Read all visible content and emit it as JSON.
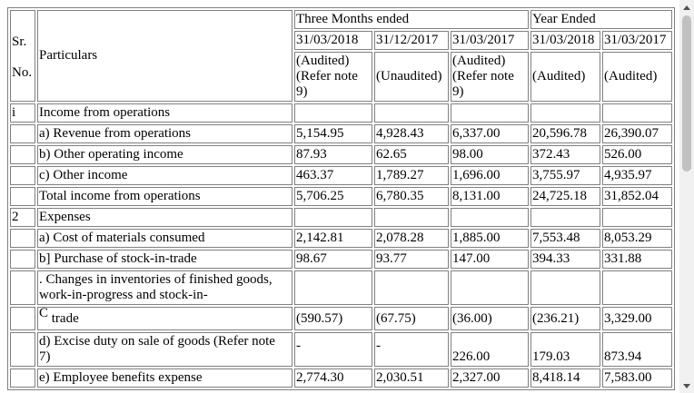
{
  "header": {
    "sr_no": "Sr.",
    "sr_no2": "No.",
    "particulars": "Particulars",
    "three_months": "Three Months ended",
    "year_ended": "Year Ended",
    "dates": [
      "31/03/2018",
      "31/12/2017",
      "31/03/2017",
      "31/03/2018",
      "31/03/2017"
    ],
    "status_a_l1": "(Audited)",
    "status_a_l2": "(Refer note",
    "status_a_l3": "9)",
    "status_b": "(Unaudited)",
    "status_c_l1": "(Audited)",
    "status_c_l2": "(Refer note",
    "status_c_l3": "9)",
    "status_d": "(Audited)",
    "status_e": "(Audited)"
  },
  "rows": [
    {
      "sr": "i",
      "label": "Income from operations",
      "values": [
        "",
        "",
        "",
        "",
        ""
      ]
    },
    {
      "sr": "",
      "label": "a) Revenue from operations",
      "values": [
        "5,154.95",
        "4,928.43",
        "6,337.00",
        "20,596.78",
        "26,390.07"
      ]
    },
    {
      "sr": "",
      "label": "b) Other operating income",
      "values": [
        "87.93",
        "62.65",
        "98.00",
        "372.43",
        "526.00"
      ]
    },
    {
      "sr": "",
      "label": "c) Other income",
      "values": [
        "463.37",
        "1,789.27",
        "1,696.00",
        "3,755.97",
        "4,935.97"
      ]
    },
    {
      "sr": "",
      "label": "Total income from operations",
      "values": [
        "5,706.25",
        "6,780.35",
        "8,131.00",
        "24,725.18",
        "31,852.04"
      ]
    },
    {
      "sr": "2",
      "label": "Expenses",
      "values": [
        "",
        "",
        "",
        "",
        ""
      ]
    },
    {
      "sr": "",
      "label": "a) Cost of materials consumed",
      "values": [
        "2,142.81",
        "2,078.28",
        "1,885.00",
        "7,553.48",
        "8,053.29"
      ]
    },
    {
      "sr": "",
      "label": "b] Purchase of stock-in-trade",
      "values": [
        "98.67",
        "93.77",
        "147.00",
        "394.33",
        "331.88"
      ]
    }
  ],
  "changes_row": {
    "label_l1": ". Changes in inventories of finished goods,",
    "label_l2": "work-in-progress and stock-in-",
    "sub_prefix": "C",
    "sub_label": " trade",
    "values": [
      "(590.57)",
      "(67.75)",
      "(36.00)",
      "(236.21)",
      "3,329.00"
    ]
  },
  "excise_row": {
    "label_l1": "d) Excise duty on sale of goods (Refer note",
    "label_l2": "7)",
    "values": [
      "-",
      "-",
      "226.00",
      "179.03",
      "873.94"
    ]
  },
  "partial_row": {
    "label": "e) Employee benefits expense",
    "values": [
      "2,774.30",
      "2,030.51",
      "2,327.00",
      "8,418.14",
      "7,583.00"
    ]
  }
}
